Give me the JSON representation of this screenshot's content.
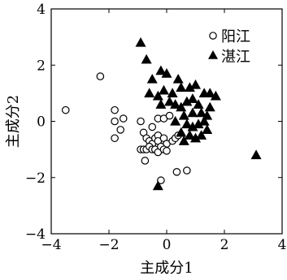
{
  "chart_data": {
    "type": "scatter",
    "xlabel": "主成分1",
    "ylabel": "主成分2",
    "xlim": [
      -4,
      4
    ],
    "ylim": [
      -4,
      4
    ],
    "xticks": [
      "−4",
      "−2",
      "0",
      "2",
      "4"
    ],
    "yticks": [
      "−4",
      "−2",
      "0",
      "2",
      "4"
    ],
    "legend_position": "top-right",
    "grid": false,
    "series": [
      {
        "name": "阳江",
        "marker": "open-circle",
        "points": [
          [
            -2.3,
            1.6
          ],
          [
            -3.5,
            0.4
          ],
          [
            -1.8,
            0.4
          ],
          [
            -1.5,
            0.1
          ],
          [
            -1.8,
            0.0
          ],
          [
            -1.6,
            -0.3
          ],
          [
            -1.8,
            -0.6
          ],
          [
            -0.9,
            0.0
          ],
          [
            -0.8,
            -0.4
          ],
          [
            -0.7,
            -0.6
          ],
          [
            -0.6,
            -0.7
          ],
          [
            -0.5,
            -0.8
          ],
          [
            -0.4,
            -0.6
          ],
          [
            -0.3,
            -0.5
          ],
          [
            -0.3,
            -0.7
          ],
          [
            -0.1,
            -0.6
          ],
          [
            0.0,
            -0.8
          ],
          [
            -0.9,
            -1.0
          ],
          [
            -0.8,
            -1.0
          ],
          [
            -0.7,
            -1.0
          ],
          [
            -0.6,
            -0.9
          ],
          [
            -0.5,
            -1.0
          ],
          [
            -0.4,
            -1.0
          ],
          [
            -0.3,
            -1.1
          ],
          [
            -0.2,
            -0.9
          ],
          [
            -0.1,
            -1.0
          ],
          [
            0.0,
            -1.05
          ],
          [
            -0.75,
            -1.4
          ],
          [
            0.2,
            -0.7
          ],
          [
            0.3,
            -0.6
          ],
          [
            0.4,
            -0.5
          ],
          [
            -0.3,
            0.1
          ],
          [
            -0.1,
            0.1
          ],
          [
            0.1,
            0.2
          ],
          [
            -0.5,
            -0.2
          ],
          [
            0.35,
            -1.8
          ],
          [
            0.7,
            -1.75
          ],
          [
            -0.2,
            -2.1
          ]
        ]
      },
      {
        "name": "湛江",
        "marker": "filled-triangle",
        "points": [
          [
            -0.9,
            2.8
          ],
          [
            -0.7,
            2.2
          ],
          [
            -0.5,
            1.5
          ],
          [
            -0.2,
            1.8
          ],
          [
            0.0,
            1.7
          ],
          [
            0.4,
            1.5
          ],
          [
            -0.6,
            1.0
          ],
          [
            -0.3,
            0.9
          ],
          [
            -0.1,
            1.1
          ],
          [
            0.2,
            1.0
          ],
          [
            0.5,
            1.2
          ],
          [
            0.8,
            1.2
          ],
          [
            1.0,
            1.3
          ],
          [
            -0.2,
            0.6
          ],
          [
            0.1,
            0.7
          ],
          [
            0.3,
            0.6
          ],
          [
            0.5,
            0.5
          ],
          [
            0.7,
            0.7
          ],
          [
            0.9,
            0.8
          ],
          [
            1.1,
            0.6
          ],
          [
            1.3,
            1.0
          ],
          [
            1.5,
            1.0
          ],
          [
            1.7,
            0.9
          ],
          [
            0.6,
            0.2
          ],
          [
            0.9,
            0.3
          ],
          [
            1.2,
            0.3
          ],
          [
            1.4,
            0.2
          ],
          [
            1.5,
            0.5
          ],
          [
            0.7,
            -0.1
          ],
          [
            0.9,
            -0.2
          ],
          [
            1.1,
            -0.1
          ],
          [
            1.3,
            0.0
          ],
          [
            0.8,
            -0.5
          ],
          [
            1.0,
            -0.6
          ],
          [
            1.2,
            -0.5
          ],
          [
            1.4,
            -0.3
          ],
          [
            0.6,
            -0.7
          ],
          [
            0.5,
            -0.4
          ],
          [
            0.3,
            0.0
          ],
          [
            -0.3,
            -2.3
          ],
          [
            3.1,
            -1.2
          ]
        ]
      }
    ]
  }
}
